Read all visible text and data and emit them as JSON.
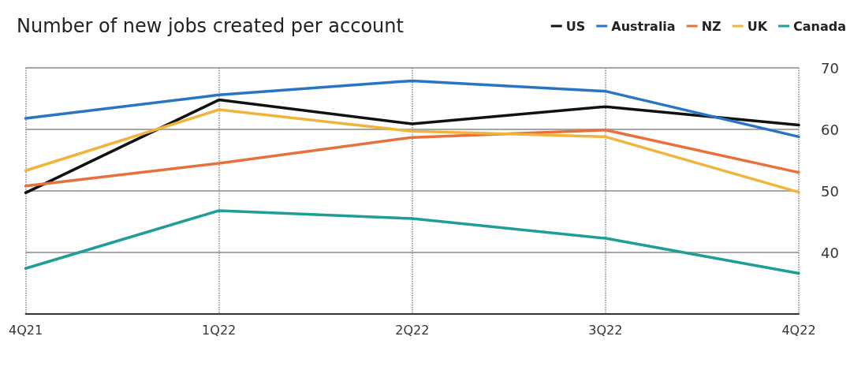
{
  "chart_data": {
    "type": "line",
    "title": "Number of new jobs created per account",
    "categories": [
      "4Q21",
      "1Q22",
      "2Q22",
      "3Q22",
      "4Q22"
    ],
    "series": [
      {
        "name": "US",
        "color": "#111111",
        "values": [
          49.7,
          64.8,
          60.9,
          63.7,
          60.7
        ]
      },
      {
        "name": "Australia",
        "color": "#2a74c4",
        "values": [
          61.8,
          65.6,
          67.9,
          66.2,
          58.8
        ]
      },
      {
        "name": "NZ",
        "color": "#e8703a",
        "values": [
          50.8,
          54.5,
          58.7,
          59.9,
          53.0
        ]
      },
      {
        "name": "UK",
        "color": "#f0b43a",
        "values": [
          53.3,
          63.2,
          59.7,
          58.8,
          49.8
        ]
      },
      {
        "name": "Canada",
        "color": "#1e9e96",
        "values": [
          37.4,
          46.8,
          45.5,
          42.3,
          36.6
        ]
      }
    ],
    "ylim": [
      30,
      70
    ],
    "yticks": [
      40,
      50,
      60,
      70
    ],
    "grid": true,
    "legend": "top right",
    "marker": "none",
    "line_style": "solid"
  }
}
